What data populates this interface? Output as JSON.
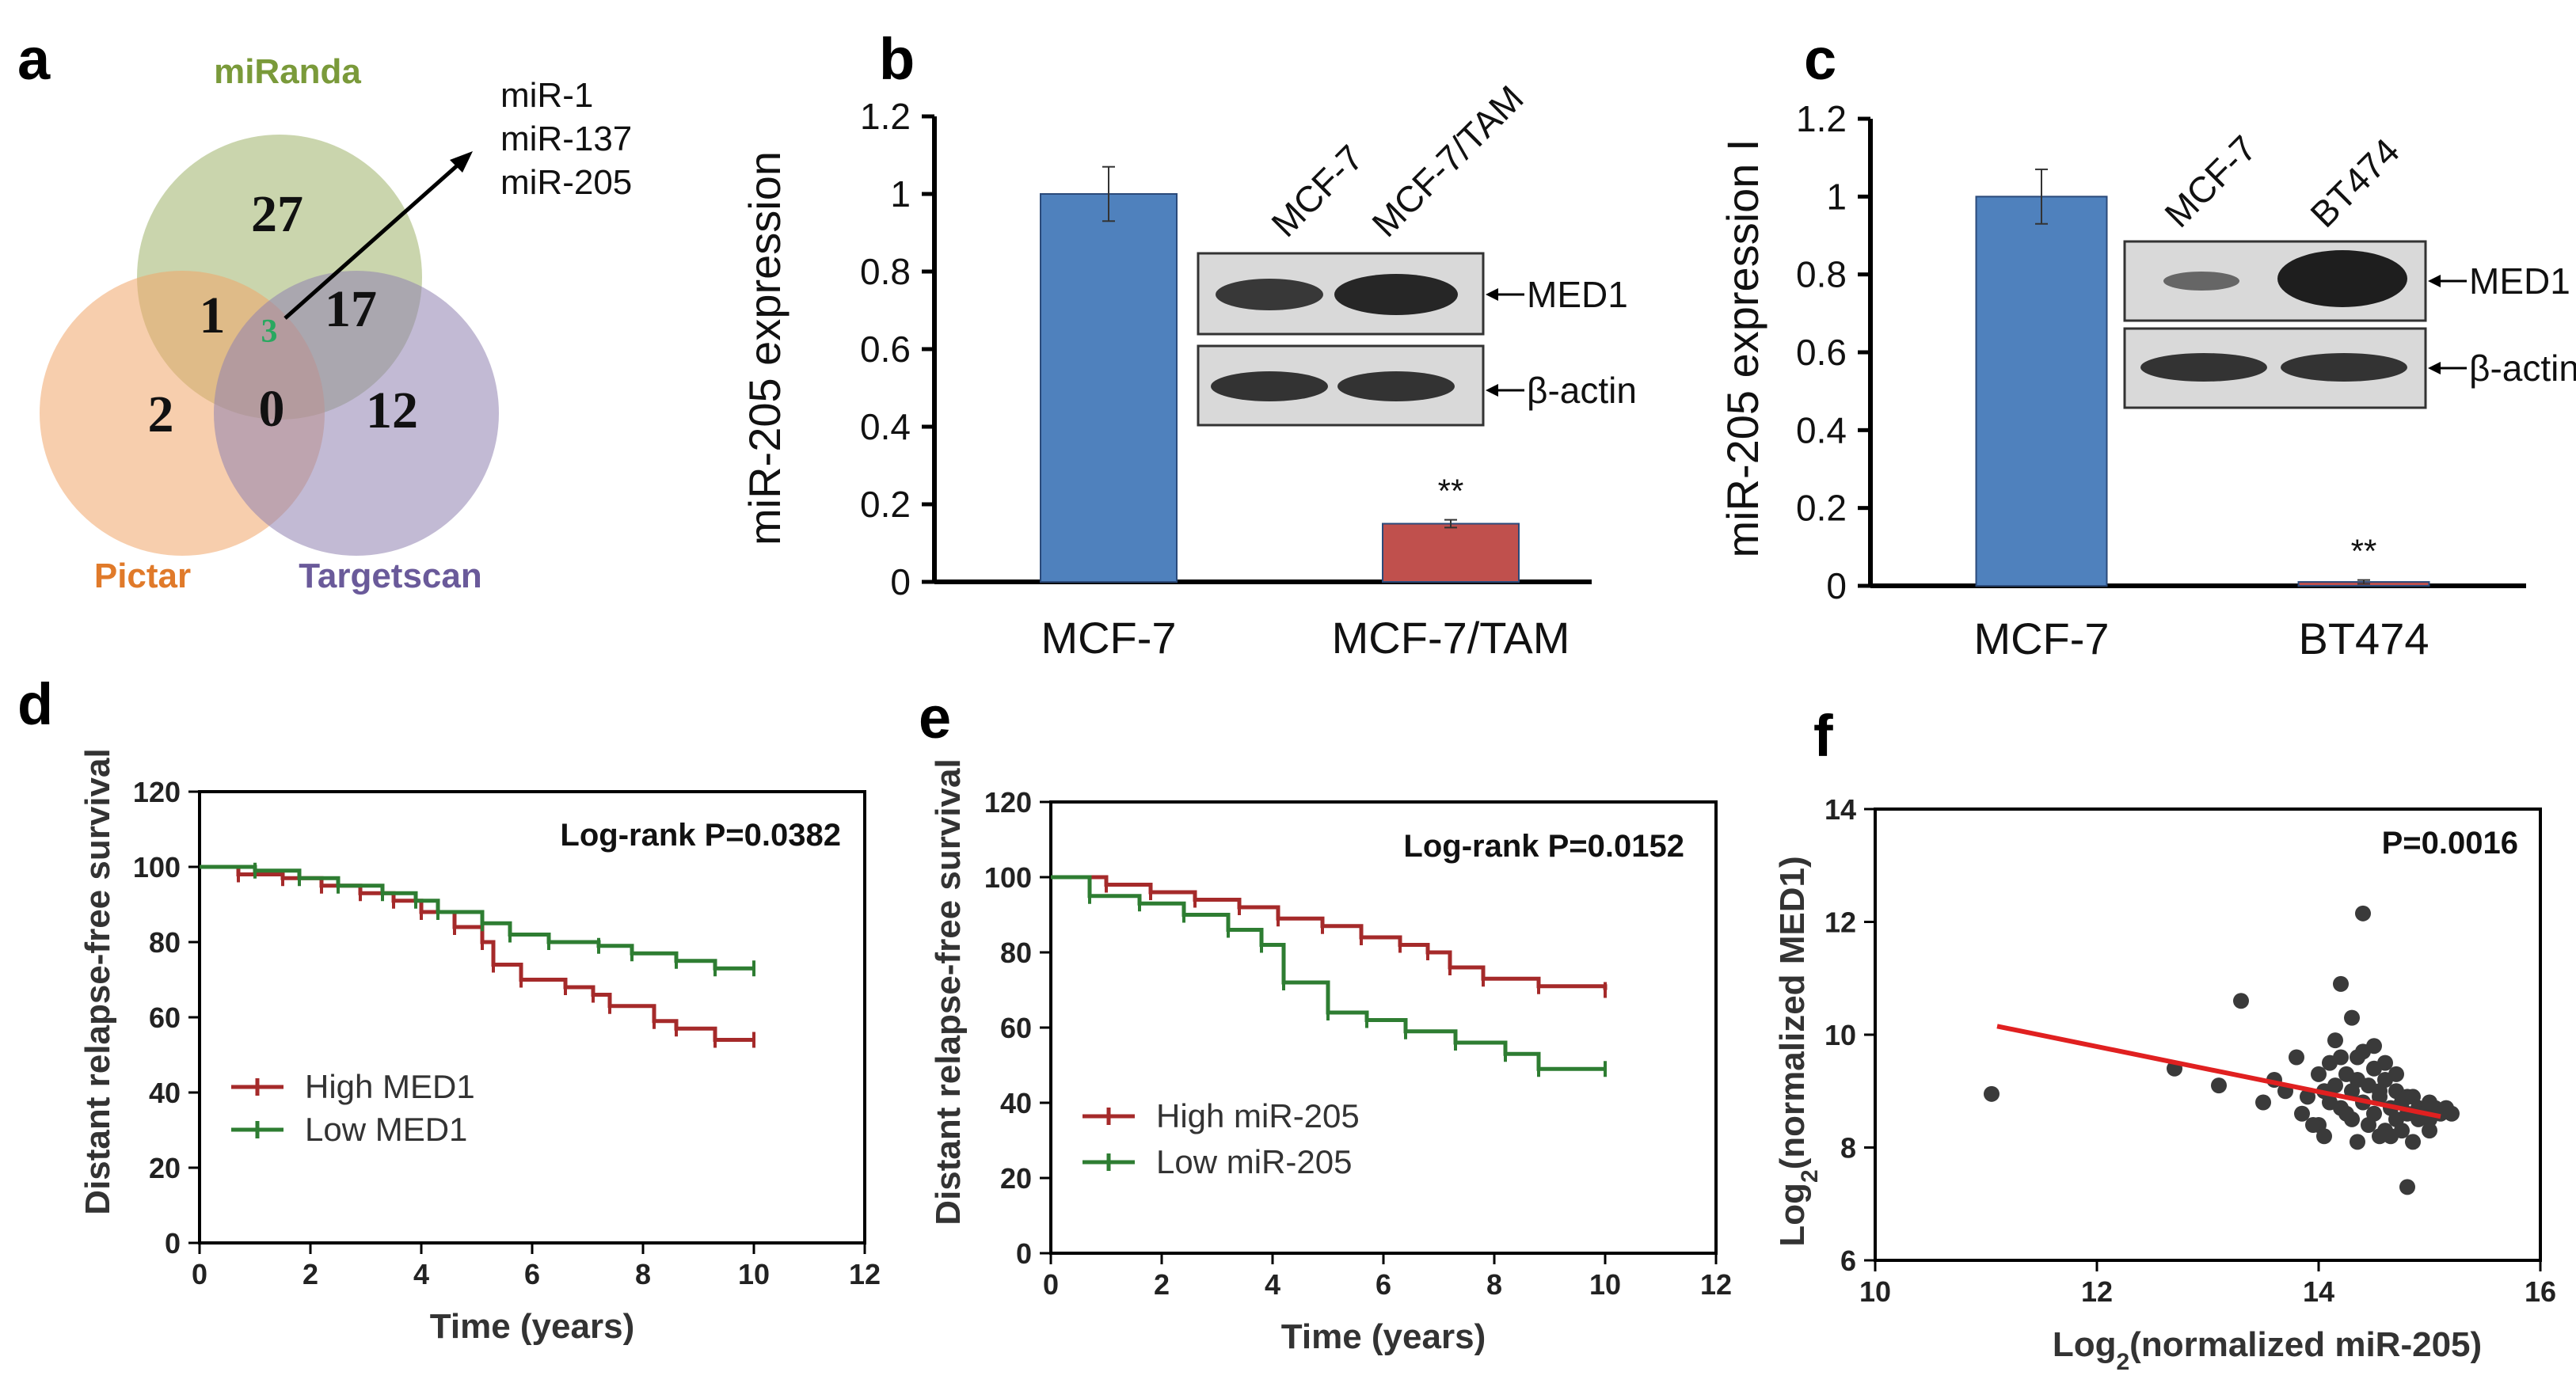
{
  "panels": {
    "a": {
      "letter": "a",
      "venn": {
        "sets": [
          "miRanda",
          "Pictar",
          "Targetscan"
        ],
        "set_colors": [
          "#9fb36a",
          "#f0a66a",
          "#8f82b0"
        ],
        "title_colors": [
          "#7a9a3a",
          "#e07a2a",
          "#6a5a9a"
        ],
        "regions": {
          "miRanda_only": "27",
          "pictar_only": "2",
          "targetscan_only": "12",
          "miRanda_pictar": "1",
          "miRanda_targetscan": "17",
          "pictar_targetscan": "0",
          "all_three": "3"
        },
        "center_color": "#2aa860",
        "callout": [
          "miR-1",
          "miR-137",
          "miR-205"
        ]
      }
    },
    "b": {
      "letter": "b",
      "blot": {
        "lanes": [
          "MCF-7",
          "MCF-7/TAM"
        ],
        "rows": [
          "MED1",
          "β-actin"
        ]
      },
      "significance": "**"
    },
    "c": {
      "letter": "c",
      "blot": {
        "lanes": [
          "MCF-7",
          "BT474"
        ],
        "rows": [
          "MED1",
          "β-actin"
        ]
      },
      "significance": "**"
    },
    "d": {
      "letter": "d",
      "annotation": "Log-rank P=0.0382"
    },
    "e": {
      "letter": "e",
      "annotation": "Log-rank P=0.0152"
    },
    "f": {
      "letter": "f",
      "annotation": "P=0.0016"
    }
  },
  "chart_data": [
    {
      "id": "b",
      "type": "bar",
      "categories": [
        "MCF-7",
        "MCF-7/TAM"
      ],
      "values": [
        1.0,
        0.15
      ],
      "errors": [
        0.07,
        0.01
      ],
      "colors": [
        "#4f81bd",
        "#c0504d"
      ],
      "ylabel": "miR-205 expression",
      "ylim": [
        0,
        1.2
      ],
      "yticks": [
        "0",
        "0.2",
        "0.4",
        "0.6",
        "0.8",
        "1",
        "1.2"
      ]
    },
    {
      "id": "c",
      "type": "bar",
      "categories": [
        "MCF-7",
        "BT474"
      ],
      "values": [
        1.0,
        0.01
      ],
      "errors": [
        0.07,
        0.005
      ],
      "colors": [
        "#4f81bd",
        "#c0504d"
      ],
      "ylabel": "miR-205 expression I",
      "ylim": [
        0,
        1.2
      ],
      "yticks": [
        "0",
        "0.2",
        "0.4",
        "0.6",
        "0.8",
        "1",
        "1.2"
      ]
    },
    {
      "id": "d",
      "type": "line",
      "title": "",
      "xlabel": "Time (years)",
      "ylabel": "Distant relapse-free survival",
      "xlim": [
        0,
        12
      ],
      "ylim": [
        0,
        120
      ],
      "xticks": [
        "0",
        "2",
        "4",
        "6",
        "8",
        "10",
        "12"
      ],
      "yticks": [
        "0",
        "20",
        "40",
        "60",
        "80",
        "100",
        "120"
      ],
      "series": [
        {
          "name": "High MED1",
          "color": "#a52a2a",
          "x": [
            0,
            0.7,
            1.5,
            2.2,
            2.9,
            3.5,
            4.0,
            4.6,
            5.1,
            5.3,
            5.8,
            6.6,
            7.1,
            7.4,
            8.2,
            8.6,
            9.3,
            10.0
          ],
          "y": [
            100,
            98,
            97,
            95,
            93,
            91,
            88,
            84,
            80,
            74,
            70,
            68,
            66,
            63,
            59,
            57,
            54,
            54
          ]
        },
        {
          "name": "Low MED1",
          "color": "#2e7d32",
          "x": [
            0,
            1.0,
            1.8,
            2.5,
            3.3,
            3.9,
            4.3,
            5.1,
            5.6,
            6.3,
            7.2,
            7.8,
            8.6,
            9.3,
            10.0
          ],
          "y": [
            100,
            99,
            97,
            95,
            93,
            91,
            88,
            85,
            82,
            80,
            79,
            77,
            75,
            73,
            73
          ]
        }
      ]
    },
    {
      "id": "e",
      "type": "line",
      "title": "",
      "xlabel": "Time (years)",
      "ylabel": "Distant relapse-free survival",
      "xlim": [
        0,
        12
      ],
      "ylim": [
        0,
        120
      ],
      "xticks": [
        "0",
        "2",
        "4",
        "6",
        "8",
        "10",
        "12"
      ],
      "yticks": [
        "0",
        "20",
        "40",
        "60",
        "80",
        "100",
        "120"
      ],
      "series": [
        {
          "name": "High miR-205",
          "color": "#a52a2a",
          "x": [
            0,
            1.0,
            1.8,
            2.6,
            3.4,
            4.1,
            4.9,
            5.6,
            6.3,
            6.8,
            7.2,
            7.8,
            8.8,
            10.0
          ],
          "y": [
            100,
            98,
            96,
            94,
            92,
            89,
            87,
            84,
            82,
            80,
            76,
            73,
            71,
            70
          ]
        },
        {
          "name": "Low miR-205",
          "color": "#2e7d32",
          "x": [
            0,
            0.7,
            1.6,
            2.4,
            3.2,
            3.8,
            4.2,
            5.0,
            5.7,
            6.4,
            7.3,
            8.2,
            8.8,
            10.0
          ],
          "y": [
            100,
            95,
            93,
            90,
            86,
            82,
            72,
            64,
            62,
            59,
            56,
            53,
            49,
            49
          ]
        }
      ]
    },
    {
      "id": "f",
      "type": "scatter",
      "xlabel": "Log2(normalized miR-205)",
      "ylabel": "Log2(normalized MED1)",
      "xlim": [
        10,
        16
      ],
      "ylim": [
        6,
        14
      ],
      "xticks": [
        "10",
        "12",
        "14",
        "16"
      ],
      "yticks": [
        "6",
        "8",
        "10",
        "12",
        "14"
      ],
      "fit": {
        "x": [
          11.1,
          15.1
        ],
        "y": [
          10.15,
          8.55
        ],
        "color": "#e02020"
      },
      "points": {
        "x": [
          11.05,
          12.7,
          13.1,
          13.3,
          13.5,
          13.6,
          13.7,
          13.8,
          13.85,
          13.9,
          14.0,
          14.0,
          14.05,
          14.1,
          14.1,
          14.15,
          14.2,
          14.2,
          14.25,
          14.3,
          14.3,
          14.35,
          14.4,
          14.4,
          14.45,
          14.5,
          14.5,
          14.55,
          14.6,
          14.6,
          14.65,
          14.7,
          14.7,
          14.75,
          14.8,
          14.8,
          14.85,
          14.9,
          14.9,
          14.95,
          15.0,
          15.0,
          15.05,
          15.1,
          15.15,
          15.2,
          14.2,
          14.4,
          14.6,
          14.3,
          14.5,
          14.7,
          14.05,
          13.95,
          14.35,
          14.55,
          14.75,
          14.85,
          14.45,
          14.25,
          14.65,
          14.15,
          14.35,
          14.55,
          14.8,
          15.0
        ],
        "y": [
          8.95,
          9.4,
          9.1,
          10.6,
          8.8,
          9.2,
          9.0,
          9.6,
          8.6,
          8.9,
          9.3,
          8.4,
          9.0,
          8.8,
          9.5,
          9.1,
          10.9,
          8.7,
          9.3,
          9.0,
          8.5,
          9.2,
          12.15,
          8.8,
          9.1,
          9.4,
          8.6,
          8.9,
          9.2,
          8.3,
          8.7,
          9.0,
          8.5,
          8.8,
          8.6,
          7.3,
          8.9,
          8.5,
          8.7,
          8.6,
          8.8,
          8.5,
          8.7,
          8.6,
          8.7,
          8.6,
          9.6,
          9.7,
          9.5,
          10.3,
          9.8,
          9.3,
          8.2,
          8.4,
          8.1,
          8.2,
          8.3,
          8.1,
          8.4,
          8.6,
          8.2,
          9.9,
          9.6,
          9.0,
          8.9,
          8.3
        ]
      }
    }
  ]
}
